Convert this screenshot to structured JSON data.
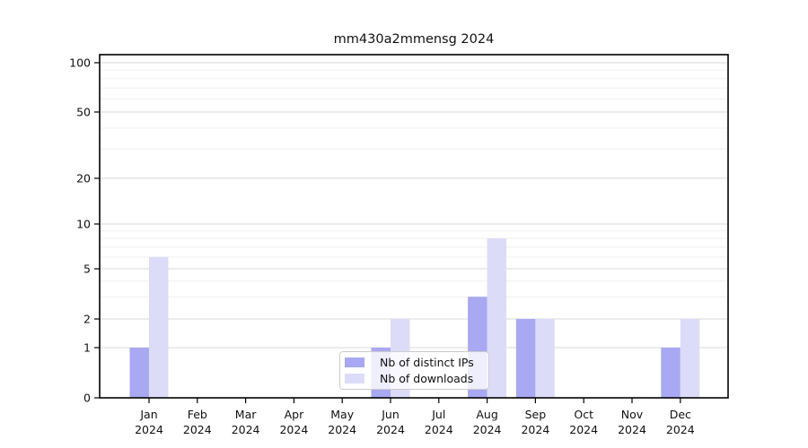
{
  "chart_data": {
    "type": "bar",
    "title": "mm430a2mmensg 2024",
    "categories": [
      "Jan",
      "Feb",
      "Mar",
      "Apr",
      "May",
      "Jun",
      "Jul",
      "Aug",
      "Sep",
      "Oct",
      "Nov",
      "Dec"
    ],
    "x_year_label": "2024",
    "series": [
      {
        "name": "Nb of distinct IPs",
        "color": "#a8a8f3",
        "values": [
          1,
          0,
          0,
          0,
          0,
          1,
          0,
          3,
          2,
          0,
          0,
          1
        ]
      },
      {
        "name": "Nb of downloads",
        "color": "#dcdcf9",
        "values": [
          6,
          0,
          0,
          0,
          0,
          2,
          0,
          8,
          2,
          0,
          0,
          2
        ]
      }
    ],
    "xlabel": "",
    "ylabel": "",
    "y_axis": {
      "scale": "log-like",
      "ticks": [
        0,
        1,
        2,
        5,
        10,
        20,
        50,
        100
      ],
      "minor_ticks": [
        3,
        4,
        6,
        7,
        8,
        9,
        30,
        40,
        60,
        70,
        80,
        90
      ],
      "ylim": [
        0,
        112
      ]
    },
    "legend": {
      "position": "lower center"
    },
    "grid": "on",
    "colors": {
      "major_gridline": "#d9d9d9",
      "minor_gridline": "#f0f0f0",
      "axis": "#000000",
      "text": "#111111"
    }
  }
}
